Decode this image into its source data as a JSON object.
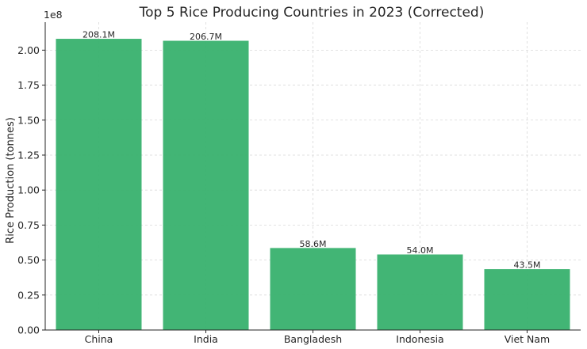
{
  "chart_data": {
    "type": "bar",
    "title": "Top 5 Rice Producing Countries in 2023 (Corrected)",
    "xlabel": "",
    "ylabel": "Rice Production (tonnes)",
    "offset_text": "1e8",
    "categories": [
      "China",
      "India",
      "Bangladesh",
      "Indonesia",
      "Viet Nam"
    ],
    "values": [
      208100000,
      206700000,
      58600000,
      54000000,
      43500000
    ],
    "data_labels": [
      "208.1M",
      "206.7M",
      "58.6M",
      "54.0M",
      "43.5M"
    ],
    "ylim": [
      0,
      220000000
    ],
    "y_ticks": [
      0,
      25000000,
      50000000,
      75000000,
      100000000,
      125000000,
      150000000,
      175000000,
      200000000
    ],
    "y_tick_labels": [
      "0.00",
      "0.25",
      "0.50",
      "0.75",
      "1.00",
      "1.25",
      "1.50",
      "1.75",
      "2.00"
    ],
    "grid": true,
    "bar_color": "#3cb371"
  }
}
